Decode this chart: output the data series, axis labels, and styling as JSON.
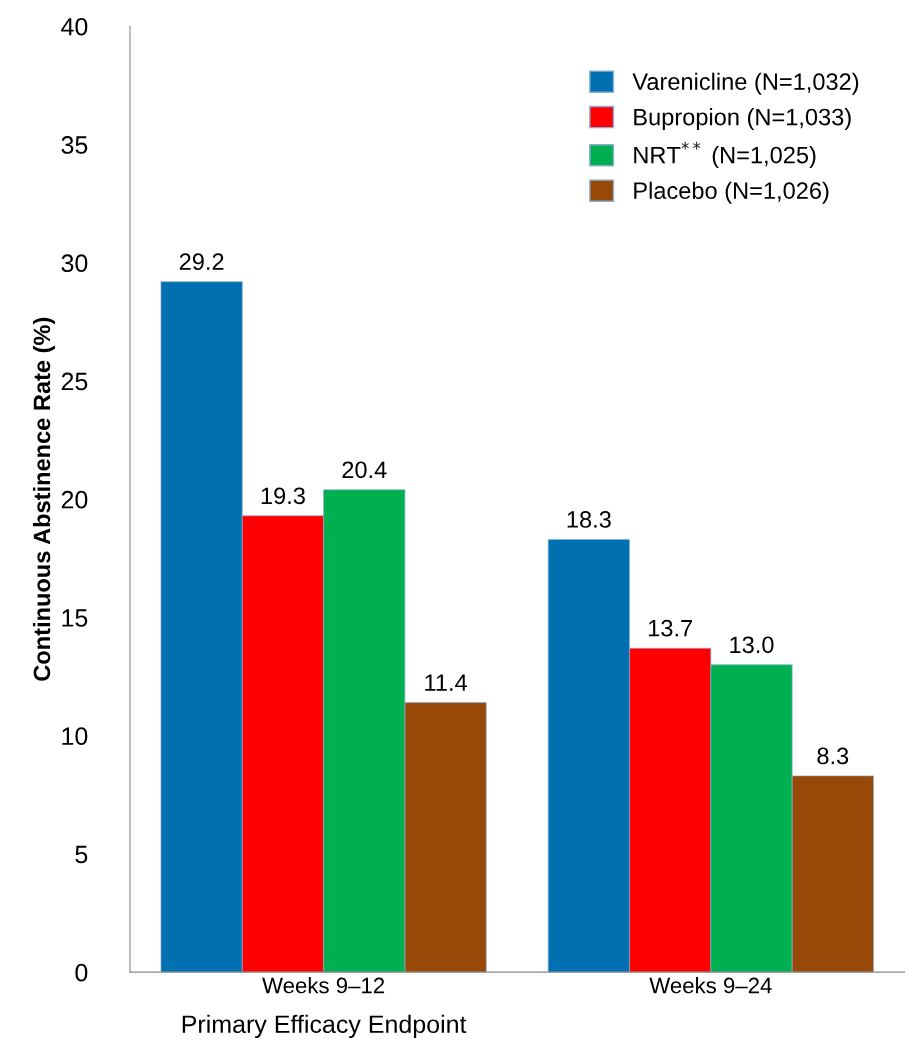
{
  "chart_data": {
    "type": "bar",
    "ylabel": "Continuous Abstinence Rate (%)",
    "categories": [
      "Weeks 9–12",
      "Weeks 9–24"
    ],
    "series": [
      {
        "name": "Varenicline (N=1,032)",
        "color": "#0070b0",
        "values": [
          29.2,
          18.3
        ],
        "value_labels": [
          "29.2",
          "18.3"
        ]
      },
      {
        "name": "Bupropion (N=1,033)",
        "color": "#ff0000",
        "values": [
          19.3,
          13.7
        ],
        "value_labels": [
          "19.3",
          "13.7"
        ]
      },
      {
        "name": "NRT$^{**}$ (N=1,025)",
        "color": "#00b050",
        "values": [
          20.4,
          13.0
        ],
        "value_labels": [
          "20.4",
          "13.0"
        ]
      },
      {
        "name": "Placebo (N=1,026)",
        "color": "#984807",
        "values": [
          11.4,
          8.3
        ],
        "value_labels": [
          "11.4",
          "8.3"
        ]
      }
    ],
    "ylim": [
      0,
      40
    ],
    "yticks": [
      0,
      5,
      10,
      15,
      20,
      25,
      30,
      35,
      40
    ],
    "legend": "top right",
    "grid": false,
    "annotations": [
      "Primary Efficacy Endpoint"
    ]
  }
}
